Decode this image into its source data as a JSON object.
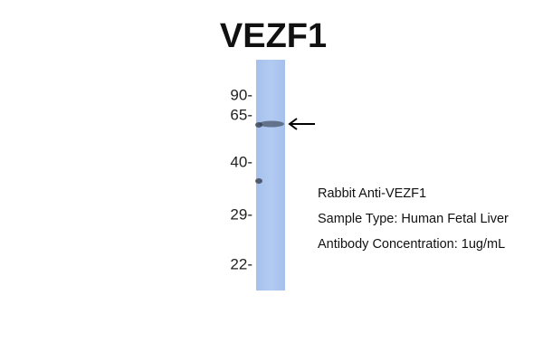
{
  "title": "VEZF1",
  "markers": [
    "90-",
    "65-",
    "40-",
    "29-",
    "22-"
  ],
  "info": [
    "Rabbit Anti-VEZF1",
    "Sample Type: Human Fetal Liver",
    "Antibody Concentration: 1ug/mL"
  ]
}
